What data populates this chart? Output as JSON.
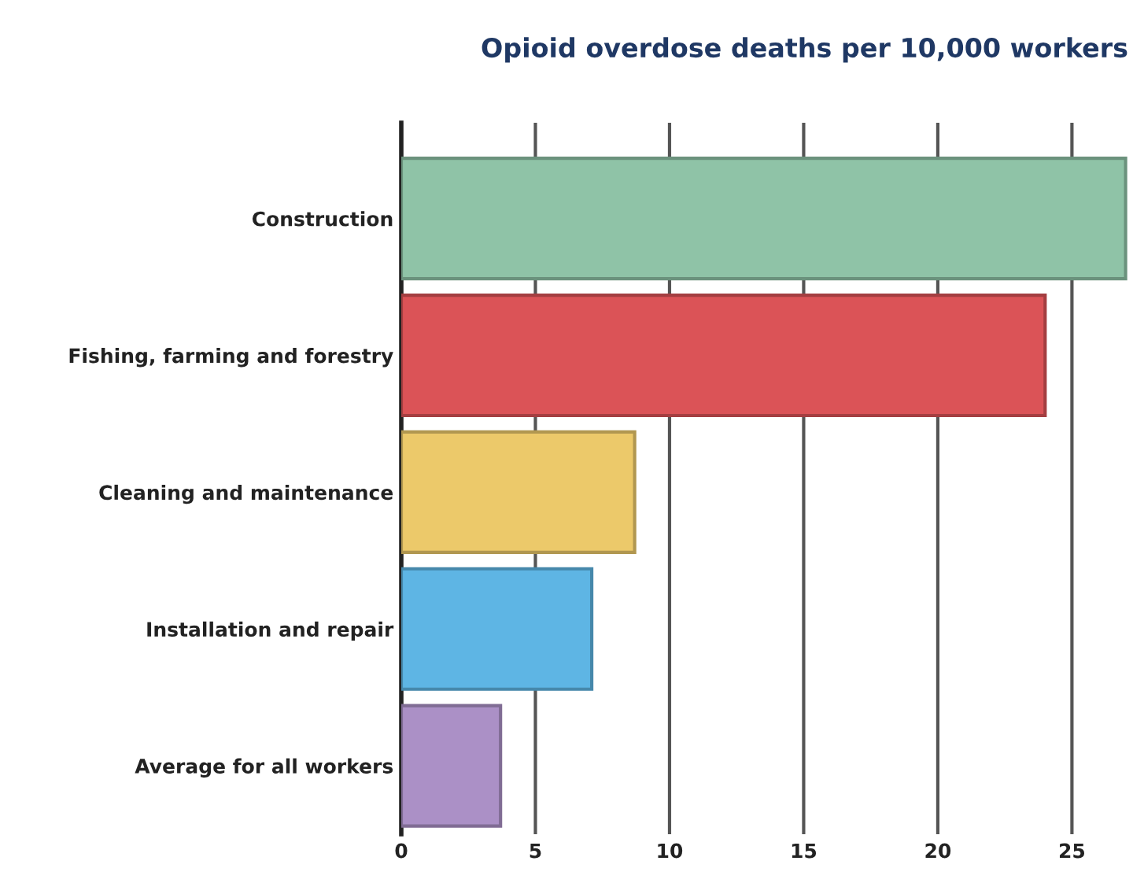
{
  "chart_data": {
    "type": "bar",
    "orientation": "horizontal",
    "title": "Opioid overdose deaths per 10,000 workers",
    "categories": [
      "Construction",
      "Fishing, farming and forestry",
      "Cleaning and maintenance",
      "Installation and repair",
      "Average for all workers"
    ],
    "values": [
      27.0,
      24.0,
      8.7,
      7.1,
      3.7
    ],
    "colors": [
      "#8fc3a7",
      "#db5357",
      "#ecc96a",
      "#5eb5e4",
      "#ab90c6"
    ],
    "xlim": [
      0,
      27.1
    ],
    "xticks": [
      0,
      5,
      10,
      15,
      20,
      25
    ],
    "grid": "x"
  }
}
